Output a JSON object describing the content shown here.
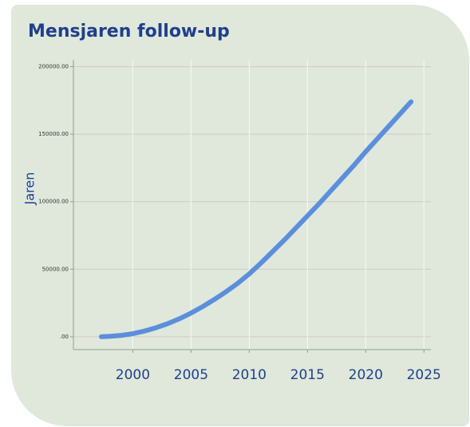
{
  "chart_data": {
    "type": "line",
    "title": "Mensjaren follow-up",
    "y_label": "Jaren",
    "x": [
      1997.3,
      1998,
      1999,
      2000,
      2001,
      2002,
      2003,
      2004,
      2005,
      2006,
      2007,
      2008,
      2009,
      2010,
      2011,
      2012,
      2013,
      2014,
      2015,
      2016,
      2017,
      2018,
      2019,
      2020,
      2021,
      2022,
      2023,
      2023.9
    ],
    "series": [
      {
        "name": "Jaren",
        "color": "#5b8fdc",
        "values": [
          0,
          300,
          1000,
          2300,
          4200,
          6700,
          9700,
          13300,
          17500,
          22300,
          27600,
          33300,
          39500,
          46500,
          54500,
          63000,
          71500,
          80500,
          89500,
          98500,
          108000,
          117500,
          127000,
          137000,
          146500,
          156000,
          165500,
          174000
        ]
      }
    ],
    "xlim": [
      1994.9,
      2025.6
    ],
    "xticks": [
      2000,
      2005,
      2010,
      2015,
      2020,
      2025
    ],
    "ylim": [
      -9500,
      205000
    ],
    "yticks": [
      {
        "value": 0,
        "label": ".00"
      },
      {
        "value": 50000,
        "label": "50000.00"
      },
      {
        "value": 100000,
        "label": "100000.00"
      },
      {
        "value": 150000,
        "label": "150000.00"
      },
      {
        "value": 200000,
        "label": "200000.00"
      }
    ],
    "grid": true
  }
}
